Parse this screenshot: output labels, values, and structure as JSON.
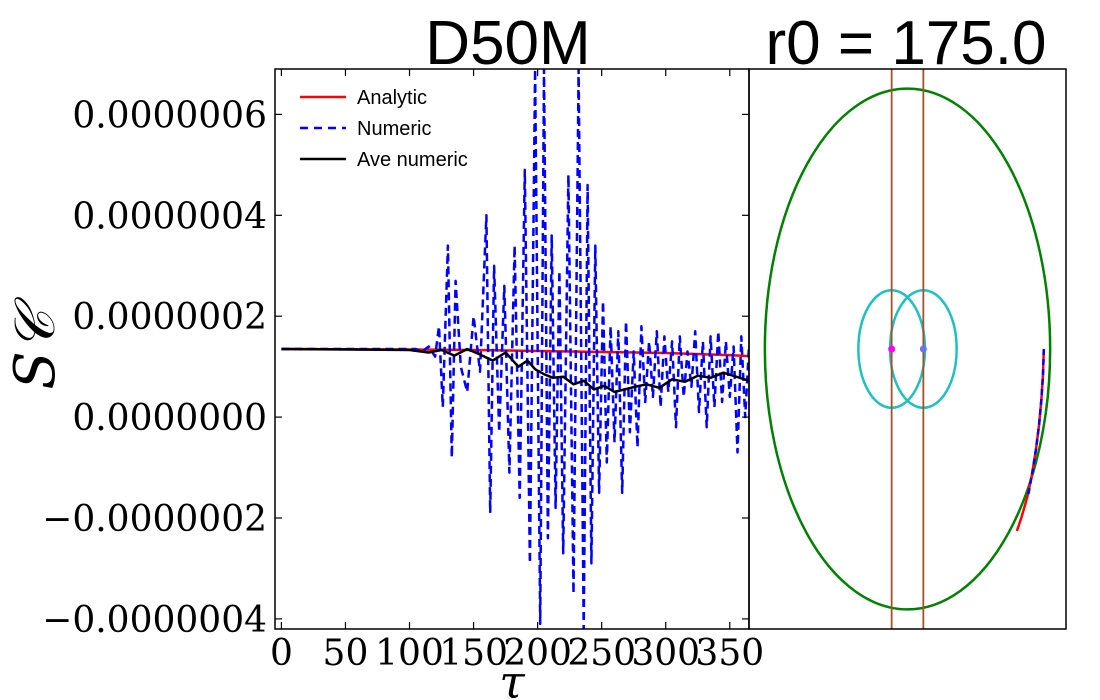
{
  "chart_data": [
    {
      "type": "line",
      "title": "D50M",
      "xlabel": "τ",
      "ylabel": "S𝒞",
      "xlim": [
        -5,
        365
      ],
      "ylim": [
        -4.2e-07,
        6.9e-07
      ],
      "x_ticks": [
        0,
        50,
        100,
        150,
        200,
        250,
        300,
        350
      ],
      "x_tick_labels": [
        "0",
        "50",
        "100",
        "150",
        "200",
        "250",
        "300",
        "350"
      ],
      "y_ticks": [
        -4e-07,
        -2e-07,
        0,
        2e-07,
        4e-07,
        6e-07
      ],
      "y_tick_labels": [
        "−0.0000004",
        "−0.0000002",
        "0.0000000",
        "0.0000002",
        "0.0000004",
        "0.0000006"
      ],
      "legend": [
        "Analytic",
        "Numeric",
        "Ave numeric"
      ],
      "legend_position": "top-left",
      "series": [
        {
          "name": "Analytic",
          "color": "#ff0000",
          "style": "solid",
          "x": [
            0,
            100,
            150,
            200,
            250,
            300,
            350,
            365
          ],
          "y": [
            1.35e-07,
            1.34e-07,
            1.33e-07,
            1.31e-07,
            1.29e-07,
            1.27e-07,
            1.23e-07,
            1.21e-07
          ]
        },
        {
          "name": "Numeric",
          "color": "#0000ff",
          "style": "dashed",
          "x": [
            0,
            105,
            110,
            115,
            120,
            123,
            126,
            130,
            133,
            136,
            140,
            145,
            150,
            155,
            160,
            163,
            166,
            170,
            174,
            178,
            182,
            186,
            190,
            194,
            198,
            202,
            205,
            208,
            211,
            214,
            217,
            220,
            224,
            228,
            232,
            236,
            239,
            242,
            245,
            248,
            251,
            254,
            257,
            260,
            263,
            266,
            269,
            272,
            275,
            278,
            281,
            284,
            287,
            290,
            293,
            296,
            299,
            302,
            305,
            308,
            311,
            314,
            317,
            320,
            323,
            326,
            329,
            332,
            335,
            338,
            341,
            344,
            347,
            350,
            353,
            356,
            359,
            362,
            365
          ],
          "y": [
            1.35e-07,
            1.35e-07,
            1.3e-07,
            1.4e-07,
            1.2e-07,
            1.8e-07,
            2e-08,
            3.4e-07,
            -8e-08,
            2.7e-07,
            1e-07,
            5e-08,
            2e-07,
            9e-08,
            4e-07,
            -1.9e-07,
            3e-07,
            -3e-08,
            2.6e-07,
            -1.1e-07,
            3.4e-07,
            -1.6e-07,
            4.9e-07,
            -2.9e-07,
            6.9e-07,
            -4.1e-07,
            6.9e-07,
            -2.4e-07,
            3.6e-07,
            -1.8e-07,
            2.9e-07,
            -2.7e-07,
            4.8e-07,
            -3.5e-07,
            6.9e-07,
            -4.2e-07,
            4.6e-07,
            -2.9e-07,
            3.4e-07,
            -1.5e-07,
            2.3e-07,
            -9e-08,
            1.8e-07,
            -5e-08,
            1.7e-07,
            -1.5e-07,
            1.9e-07,
            -3e-08,
            1.3e-07,
            -6e-08,
            1.8e-07,
            3e-08,
            1.5e-07,
            4e-08,
            1.7e-07,
            2e-08,
            1.6e-07,
            5e-08,
            1.5e-07,
            -2e-08,
            1.6e-07,
            4e-08,
            1.3e-07,
            6e-08,
            1.7e-07,
            1e-08,
            1.5e-07,
            -2e-08,
            1.6e-07,
            2e-08,
            1.7e-07,
            3e-08,
            1.5e-07,
            4e-08,
            1.4e-07,
            -7e-08,
            1.6e-07,
            0.0,
            1.4e-07
          ]
        },
        {
          "name": "Ave numeric",
          "color": "#000000",
          "style": "solid",
          "x": [
            0,
            100,
            115,
            125,
            135,
            145,
            155,
            165,
            175,
            185,
            192,
            198,
            205,
            212,
            220,
            228,
            236,
            244,
            252,
            260,
            268,
            276,
            285,
            295,
            305,
            315,
            325,
            335,
            345,
            355,
            365
          ],
          "y": [
            1.35e-07,
            1.33e-07,
            1.28e-07,
            1.33e-07,
            1.22e-07,
            1.35e-07,
            1.24e-07,
            1.12e-07,
            1.28e-07,
            1e-07,
            1.12e-07,
            9.5e-08,
            8.5e-08,
            7.8e-08,
            8e-08,
            6.5e-08,
            7.2e-08,
            5.5e-08,
            6.2e-08,
            5e-08,
            5.5e-08,
            6e-08,
            6.5e-08,
            5.8e-08,
            7.5e-08,
            7e-08,
            8.2e-08,
            7.8e-08,
            8.8e-08,
            8e-08,
            7.2e-08
          ]
        }
      ]
    },
    {
      "type": "line",
      "title": "r0 = 175.0",
      "xlim": [
        -1.0,
        1.0
      ],
      "ylim": [
        -1.0,
        1.0
      ],
      "shapes": [
        {
          "name": "outer-orbit",
          "kind": "ellipse",
          "color": "#008000",
          "cx": 0,
          "cy": 0,
          "rx": 0.9,
          "ry": 0.93
        },
        {
          "name": "left-lobe",
          "kind": "ellipse",
          "color": "#20c0c0",
          "cx": -0.1,
          "cy": 0,
          "rx": 0.21,
          "ry": 0.21
        },
        {
          "name": "right-lobe",
          "kind": "ellipse",
          "color": "#20c0c0",
          "cx": 0.1,
          "cy": 0,
          "rx": 0.21,
          "ry": 0.21
        },
        {
          "name": "left-boundary",
          "kind": "vline",
          "color": "#a0522d",
          "x": -0.1
        },
        {
          "name": "right-boundary",
          "kind": "vline",
          "color": "#a0522d",
          "x": 0.1
        }
      ],
      "markers": [
        {
          "name": "mass-left",
          "color": "#ff00ff",
          "x": -0.1,
          "y": 0
        },
        {
          "name": "mass-right",
          "color": "#7070ff",
          "x": 0.1,
          "y": 0
        }
      ],
      "series": [
        {
          "name": "Analytic",
          "color": "#ff0000",
          "style": "solid",
          "x": [
            0.86,
            0.855,
            0.845,
            0.83,
            0.81,
            0.785,
            0.755,
            0.72,
            0.69
          ],
          "y": [
            0.0,
            -0.09,
            -0.18,
            -0.27,
            -0.36,
            -0.45,
            -0.53,
            -0.6,
            -0.65
          ]
        },
        {
          "name": "Numeric",
          "color": "#0000ff",
          "style": "dashed",
          "x": [
            0.86,
            0.855,
            0.845,
            0.83,
            0.81,
            0.785,
            0.762
          ],
          "y": [
            0.0,
            -0.09,
            -0.18,
            -0.27,
            -0.36,
            -0.45,
            -0.52
          ]
        }
      ]
    }
  ]
}
